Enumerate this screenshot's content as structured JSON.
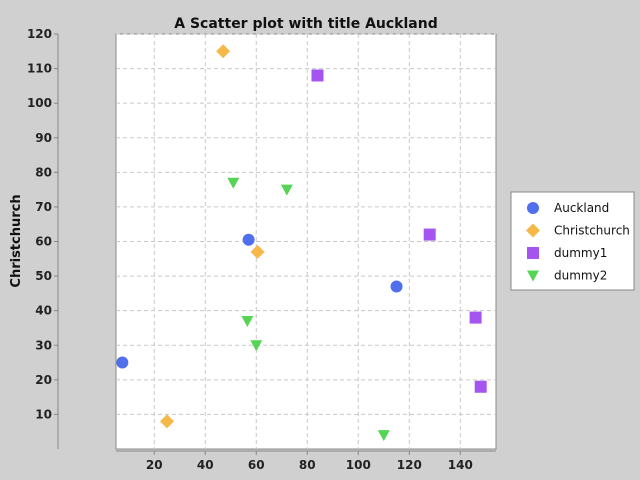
{
  "chart_data": {
    "type": "scatter",
    "title": "A Scatter plot with title Auckland",
    "xlabel": "",
    "ylabel": "Christchurch",
    "xlim": [
      5,
      154
    ],
    "ylim": [
      0,
      120
    ],
    "x_ticks": [
      20,
      40,
      60,
      80,
      100,
      120,
      140
    ],
    "y_ticks": [
      10,
      20,
      30,
      40,
      50,
      60,
      70,
      80,
      90,
      100,
      110,
      120
    ],
    "grid": true,
    "legend_position": "right",
    "series": [
      {
        "name": "Auckland",
        "marker": "circle",
        "color": "#4f6fec",
        "points": [
          [
            7.5,
            25
          ],
          [
            57,
            60.5
          ],
          [
            115,
            47
          ]
        ]
      },
      {
        "name": "Christchurch",
        "marker": "diamond",
        "color": "#f7b84a",
        "points": [
          [
            47,
            115
          ],
          [
            60.5,
            57
          ],
          [
            25,
            8
          ]
        ]
      },
      {
        "name": "dummy1",
        "marker": "square",
        "color": "#a455f0",
        "points": [
          [
            84,
            108
          ],
          [
            128,
            62
          ],
          [
            146,
            38
          ],
          [
            148,
            18
          ]
        ]
      },
      {
        "name": "dummy2",
        "marker": "triangle-down",
        "color": "#55d455",
        "points": [
          [
            51,
            77
          ],
          [
            72,
            75
          ],
          [
            56.5,
            37
          ],
          [
            60,
            30
          ],
          [
            110,
            4
          ]
        ]
      }
    ]
  }
}
